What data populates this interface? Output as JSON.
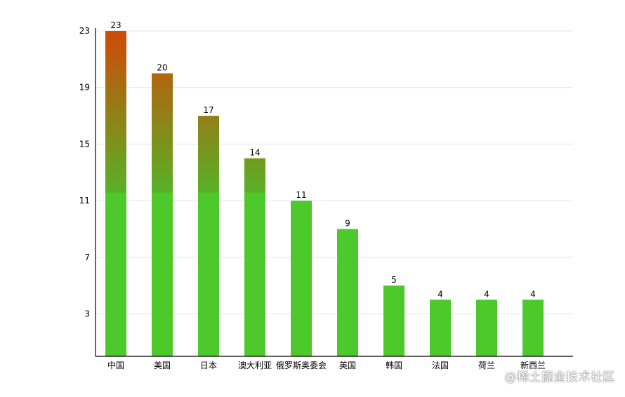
{
  "chart_data": {
    "type": "bar",
    "categories": [
      "中国",
      "美国",
      "日本",
      "澳大利亚",
      "俄罗斯奥委会",
      "英国",
      "韩国",
      "法国",
      "荷兰",
      "新西兰"
    ],
    "values": [
      23,
      20,
      17,
      14,
      11,
      9,
      5,
      4,
      4,
      4
    ],
    "yticks": [
      3,
      7,
      11,
      15,
      19,
      23
    ],
    "ylim": [
      0,
      23
    ],
    "grid": true,
    "legend": "none",
    "title": "",
    "xlabel": "",
    "ylabel": ""
  },
  "colors": {
    "bar_base": "#4ec92c",
    "bar_top": "#cf4a06",
    "grid": "#e6e6e6",
    "axis": "#000000"
  },
  "watermark": {
    "text": "@稀土掘金技术社区"
  }
}
